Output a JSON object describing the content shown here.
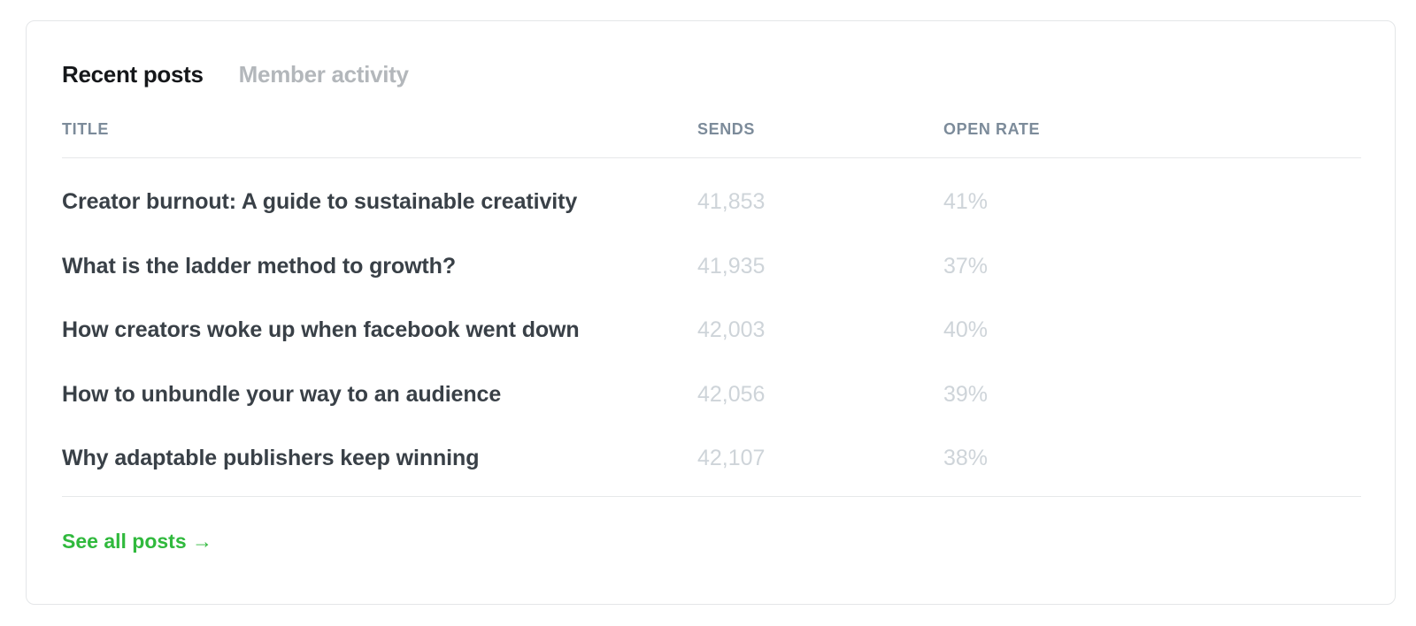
{
  "tabs": [
    {
      "label": "Recent posts",
      "active": true
    },
    {
      "label": "Member activity",
      "active": false
    }
  ],
  "table": {
    "headers": {
      "title": "TITLE",
      "sends": "SENDS",
      "open_rate": "OPEN RATE"
    },
    "rows": [
      {
        "title": "Creator burnout: A guide to sustainable creativity",
        "sends": "41,853",
        "open_rate": "41%"
      },
      {
        "title": "What is the ladder method to growth?",
        "sends": "41,935",
        "open_rate": "37%"
      },
      {
        "title": "How creators woke up when facebook went down",
        "sends": "42,003",
        "open_rate": "40%"
      },
      {
        "title": "How to unbundle your way to an audience",
        "sends": "42,056",
        "open_rate": "39%"
      },
      {
        "title": "Why adaptable publishers keep winning",
        "sends": "42,107",
        "open_rate": "38%"
      }
    ]
  },
  "footer": {
    "see_all_label": "See all posts →"
  },
  "colors": {
    "accent": "#30b93d",
    "title_text": "#394047",
    "muted_value": "#ced4d9",
    "header_text": "#7c8b9a"
  }
}
